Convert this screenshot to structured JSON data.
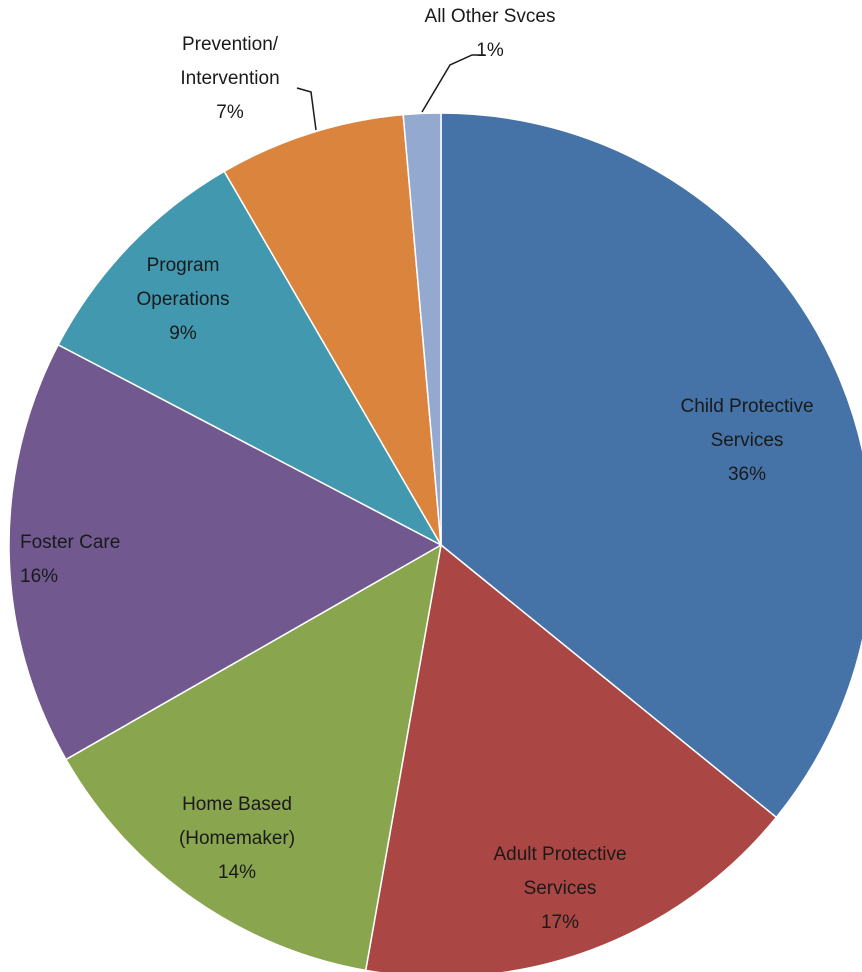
{
  "chart_data": {
    "type": "pie",
    "slices": [
      {
        "lines": [
          "Child Protective",
          "Services"
        ],
        "pct_label": "36%",
        "value": 36,
        "color": "#4572a7"
      },
      {
        "lines": [
          "Adult Protective",
          "Services"
        ],
        "pct_label": "17%",
        "value": 17,
        "color": "#aa4643"
      },
      {
        "lines": [
          "Home Based",
          "(Homemaker)"
        ],
        "pct_label": "14%",
        "value": 14,
        "color": "#89a54e"
      },
      {
        "lines": [
          "Foster Care"
        ],
        "pct_label": "16%",
        "value": 16,
        "color": "#71588f"
      },
      {
        "lines": [
          "Program",
          "Operations"
        ],
        "pct_label": "9%",
        "value": 9,
        "color": "#4198af"
      },
      {
        "lines": [
          "Prevention/",
          "Intervention"
        ],
        "pct_label": "7%",
        "value": 7,
        "color": "#db843d"
      },
      {
        "lines": [
          "All Other Svces"
        ],
        "pct_label": "1%",
        "value": 1.4,
        "color": "#93a9cf"
      }
    ]
  }
}
